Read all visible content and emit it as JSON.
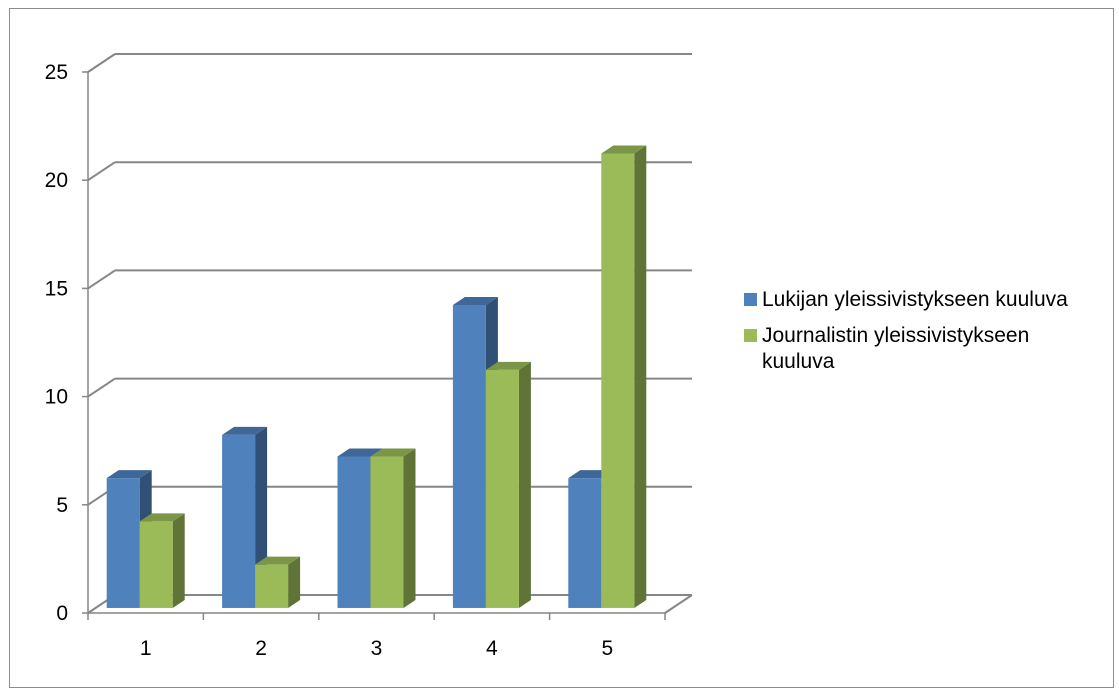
{
  "chart_data": {
    "type": "bar",
    "title": "",
    "xlabel": "",
    "ylabel": "",
    "categories": [
      "1",
      "2",
      "3",
      "4",
      "5"
    ],
    "ylim": [
      0,
      25
    ],
    "yticks": [
      "0",
      "5",
      "10",
      "15",
      "20",
      "25"
    ],
    "grid": true,
    "legend_position": "right",
    "series": [
      {
        "name": "Lukijan yleissivistykseen kuuluva",
        "values": [
          6,
          8,
          7,
          14,
          6
        ],
        "color": "#4f81bd"
      },
      {
        "name": "Journalistin yleissivistykseen kuuluva",
        "values": [
          4,
          2,
          7,
          11,
          21
        ],
        "color": "#9bbb59"
      }
    ]
  }
}
